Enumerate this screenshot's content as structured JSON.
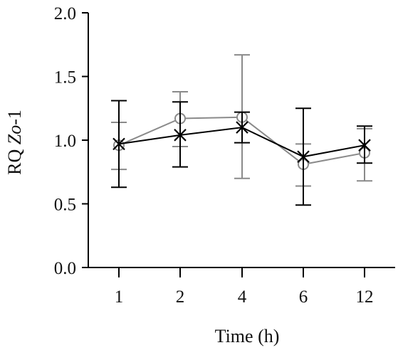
{
  "chart_data": {
    "type": "line",
    "xlabel": "Time (h)",
    "ylabel": {
      "prefix": "RQ ",
      "gene": "Zo",
      "suffix": "-1"
    },
    "categories": [
      "1",
      "2",
      "4",
      "6",
      "12"
    ],
    "ylim": [
      0,
      2
    ],
    "yticks": [
      "0.0",
      "0.5",
      "1.0",
      "1.5",
      "2.0"
    ],
    "grid": false,
    "legend": "none",
    "series": [
      {
        "marker": "circle",
        "color": "#8a8a8a",
        "values": [
          0.96,
          1.17,
          1.18,
          0.81,
          0.9
        ],
        "error": [
          [
            0.77,
            1.14
          ],
          [
            0.95,
            1.38
          ],
          [
            0.7,
            1.67
          ],
          [
            0.64,
            0.97
          ],
          [
            0.68,
            1.09
          ]
        ]
      },
      {
        "marker": "x",
        "color": "#000000",
        "values": [
          0.97,
          1.04,
          1.1,
          0.87,
          0.96
        ],
        "error": [
          [
            0.63,
            1.31
          ],
          [
            0.79,
            1.3
          ],
          [
            0.98,
            1.22
          ],
          [
            0.49,
            1.25
          ],
          [
            0.82,
            1.11
          ]
        ]
      }
    ]
  }
}
